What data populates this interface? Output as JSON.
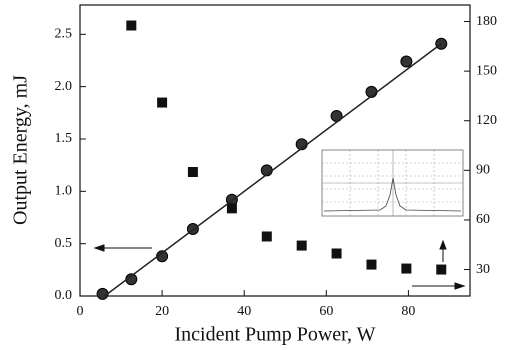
{
  "chart_data": {
    "type": "scatter",
    "x_label": "Incident Pump Power,  W",
    "y_label": "Output Energy,  mJ",
    "xlim": [
      0,
      95
    ],
    "xticks": [
      0,
      20,
      40,
      60,
      80
    ],
    "ylim": [
      0,
      2.78
    ],
    "yticks": [
      {
        "value": 0,
        "label": "0.0"
      },
      0.5,
      {
        "value": 1,
        "label": "1.0"
      },
      1.5,
      {
        "value": 2,
        "label": "2.0"
      },
      2.5
    ],
    "y2lim": [
      14,
      190
    ],
    "y2ticks": [
      30,
      60,
      90,
      120,
      150,
      180
    ],
    "series": [
      {
        "marker": "circle",
        "color": "#333333",
        "x": [
          5.5,
          12.5,
          20,
          27.5,
          37,
          45.5,
          54,
          62.5,
          71,
          79.5,
          88
        ],
        "values": [
          0.02,
          0.16,
          0.38,
          0.64,
          0.92,
          1.2,
          1.45,
          1.72,
          1.95,
          2.24,
          2.41
        ]
      },
      {
        "marker": "square",
        "color": "#111111",
        "axis": "y2",
        "x": [
          12.5,
          20,
          27.5,
          37,
          45.5,
          54,
          62.5,
          71,
          79.5,
          88
        ],
        "values": [
          177.6,
          131,
          89,
          67,
          50,
          44.5,
          39.7,
          33,
          30.6,
          30
        ]
      },
      {
        "marker": "line",
        "color": "#222222",
        "x": [
          6,
          88
        ],
        "values": [
          0,
          2.41
        ]
      }
    ]
  }
}
